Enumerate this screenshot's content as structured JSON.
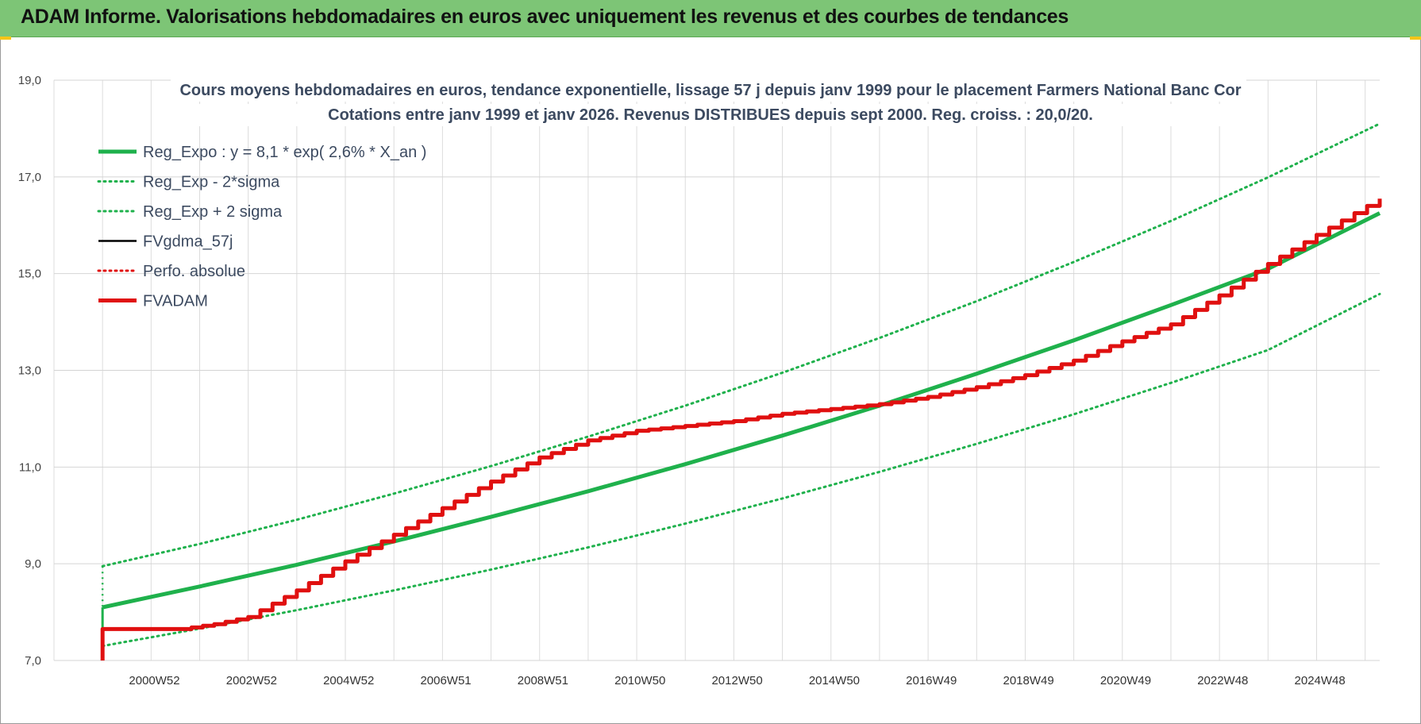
{
  "header": {
    "title": "ADAM Informe. Valorisations hebdomadaires en euros avec uniquement les revenus et des courbes de tendances"
  },
  "chart_data": {
    "type": "line",
    "title_lines": [
      "Cours moyens hebdomadaires en euros, tendance exponentielle, lissage 57 j depuis janv 1999 pour le placement Farmers National Banc Cor",
      "Cotations entre janv 1999 et janv 2026. Revenus DISTRIBUES depuis sept 2000. Reg. croiss. : 20,0/20."
    ],
    "xlabel": "",
    "ylabel": "",
    "ylim": [
      7,
      19
    ],
    "xlim": [
      1998.0,
      2025.3
    ],
    "y_ticks": [
      "7,0",
      "9,0",
      "11,0",
      "13,0",
      "15,0",
      "17,0",
      "19,0"
    ],
    "y_tick_values": [
      7,
      9,
      11,
      13,
      15,
      17,
      19
    ],
    "x_ticks": [
      "2000W52",
      "2002W52",
      "2004W52",
      "2006W51",
      "2008W51",
      "2010W50",
      "2012W50",
      "2014W50",
      "2016W49",
      "2018W49",
      "2020W49",
      "2022W48",
      "2024W48"
    ],
    "x_tick_values": [
      2001,
      2003,
      2005,
      2007,
      2009,
      2011,
      2013,
      2015,
      2017,
      2019,
      2021,
      2023,
      2025
    ],
    "grid": true,
    "legend_position": "top-left",
    "series": [
      {
        "name": "Reg_Expo : y = 8,1 * exp( 2,6% *  X_an )",
        "color": "#1fb14c",
        "style": "solid-thick",
        "x": [
          1999.0,
          2001,
          2003,
          2005,
          2007,
          2009,
          2011,
          2013,
          2015,
          2017,
          2019,
          2021,
          2023,
          2025.3
        ],
        "y": [
          8.1,
          8.53,
          8.98,
          9.46,
          9.97,
          10.5,
          11.06,
          11.65,
          12.27,
          12.93,
          13.62,
          14.35,
          15.1,
          16.25
        ]
      },
      {
        "name": "Reg_Exp - 2*sigma",
        "color": "#1fb14c",
        "style": "dotted",
        "x": [
          1999.0,
          2001,
          2003,
          2005,
          2007,
          2009,
          2011,
          2013,
          2015,
          2017,
          2019,
          2021,
          2023,
          2025.3
        ],
        "y": [
          7.3,
          7.66,
          8.04,
          8.45,
          8.88,
          9.34,
          9.83,
          10.35,
          10.9,
          11.48,
          12.09,
          12.74,
          13.42,
          14.58
        ]
      },
      {
        "name": "Reg_Exp + 2 sigma",
        "color": "#1fb14c",
        "style": "dotted",
        "x": [
          1999.0,
          2001,
          2003,
          2005,
          2007,
          2009,
          2011,
          2013,
          2015,
          2017,
          2019,
          2021,
          2023,
          2025.3
        ],
        "y": [
          8.95,
          9.41,
          9.91,
          10.45,
          11.02,
          11.63,
          12.27,
          12.95,
          13.67,
          14.43,
          15.24,
          16.09,
          16.99,
          18.1
        ]
      },
      {
        "name": "FVgdma_57j",
        "color": "#000000",
        "style": "solid",
        "x": [],
        "y": []
      },
      {
        "name": "Perfo. absolue",
        "color": "#e01010",
        "style": "dotted",
        "x": [],
        "y": []
      },
      {
        "name": "FVADAM",
        "color": "#e01010",
        "style": "solid-thick",
        "x": [
          1999.0,
          1999.0,
          2000.6,
          2001.3,
          2002.0,
          2003.0,
          2004.0,
          2005.0,
          2006.0,
          2007.0,
          2008.0,
          2009.0,
          2010.0,
          2011.0,
          2012.0,
          2013.0,
          2014.0,
          2015.0,
          2016.0,
          2017.0,
          2018.0,
          2019.0,
          2020.0,
          2021.0,
          2022.0,
          2023.0,
          2024.0,
          2025.3
        ],
        "y": [
          7.0,
          7.65,
          7.65,
          7.75,
          7.9,
          8.45,
          9.05,
          9.6,
          10.15,
          10.7,
          11.2,
          11.55,
          11.75,
          11.85,
          11.95,
          12.1,
          12.2,
          12.3,
          12.45,
          12.65,
          12.9,
          13.2,
          13.6,
          13.95,
          14.55,
          15.2,
          15.8,
          16.55
        ],
        "stepped": true
      }
    ]
  }
}
